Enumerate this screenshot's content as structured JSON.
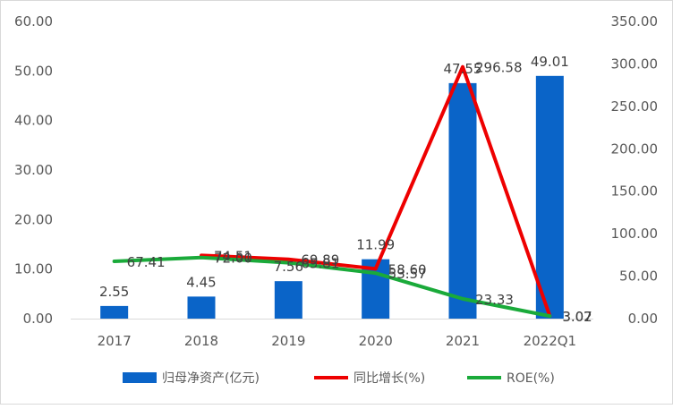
{
  "chart_data": {
    "type": "bar",
    "categories": [
      "2017",
      "2018",
      "2019",
      "2020",
      "2021",
      "2022Q1"
    ],
    "series": [
      {
        "name": "归母净资产(亿元)",
        "type": "bar",
        "axis": "left",
        "color": "#0a64c8",
        "values": [
          2.55,
          4.45,
          7.56,
          11.99,
          47.55,
          49.01
        ],
        "labels": [
          "2.55",
          "4.45",
          "7.56",
          "11.99",
          "47.55",
          "49.01"
        ]
      },
      {
        "name": "同比增长(%)",
        "type": "line",
        "axis": "right",
        "color": "#ee0000",
        "values": [
          null,
          74.51,
          69.89,
          58.6,
          296.58,
          3.07
        ],
        "labels": [
          "",
          "74.51",
          "69.89",
          "58.60",
          "296.58",
          "3.07"
        ]
      },
      {
        "name": "ROE(%)",
        "type": "line",
        "axis": "right",
        "color": "#1aaa3a",
        "values": [
          67.41,
          72.0,
          65.81,
          53.57,
          23.33,
          3.02
        ],
        "labels": [
          "67.41",
          "72.00",
          "65.81",
          "53.57",
          "23.33",
          "3.02"
        ]
      }
    ],
    "ylim": [
      0,
      60
    ],
    "yticks": [
      "0.00",
      "10.00",
      "20.00",
      "30.00",
      "40.00",
      "50.00",
      "60.00"
    ],
    "y2lim": [
      0,
      350
    ],
    "y2ticks": [
      "0.00",
      "50.00",
      "100.00",
      "150.00",
      "200.00",
      "250.00",
      "300.00",
      "350.00"
    ],
    "title": "",
    "xlabel": "",
    "ylabel": "",
    "grid": false,
    "legend": "bottom"
  }
}
